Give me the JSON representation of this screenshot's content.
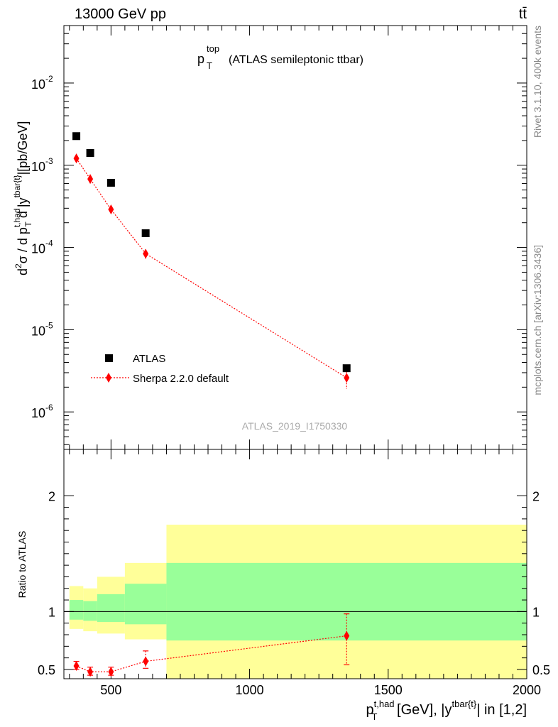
{
  "header": {
    "left": "13000 GeV pp",
    "right": "tt̄"
  },
  "side_labels": {
    "rivet": "Rivet 3.1.10,  400k events",
    "site": "mcplots.cern.ch [arXiv:1306.3436]"
  },
  "main_panel": {
    "title_main": "p",
    "title_sup": "top",
    "title_sub": "T",
    "title_rest": "(ATLAS semileptonic ttbar)",
    "analysis_id": "ATLAS_2019_I1750330",
    "ylabel": "d²σ / d p_T^{t,had} d |y^{tbar{t}}|[pb/GeV]",
    "ytick_labels": [
      "10",
      "10",
      "10",
      "10",
      "10"
    ],
    "ytick_exps": [
      "-2",
      "-3",
      "-4",
      "-5",
      "-6"
    ]
  },
  "ratio_panel": {
    "ylabel": "Ratio to ATLAS",
    "ytick_labels": [
      "2",
      "1",
      "0.5"
    ],
    "xtick_labels": [
      "500",
      "1000",
      "1500",
      "2000"
    ]
  },
  "xlabel": "p_T^{t,had} [GeV], |y^{tbar{t}}| in [1,2]",
  "legend": {
    "data": "ATLAS",
    "mc": "Sherpa 2.2.0 default"
  },
  "colors": {
    "data": "#000000",
    "mc": "#ff0000",
    "band_inner": "#99ff99",
    "band_outer": "#ffff99"
  },
  "chart_data": [
    {
      "type": "scatter",
      "panel": "main",
      "yscale": "log",
      "xlim": [
        330,
        2000
      ],
      "ylim": [
        3.5e-07,
        0.05
      ],
      "series": [
        {
          "name": "ATLAS",
          "x": [
            375,
            425,
            500,
            625,
            1350
          ],
          "y": [
            0.00226,
            0.00141,
            0.000612,
            0.000149,
            3.4e-06
          ]
        },
        {
          "name": "Sherpa 2.2.0 default",
          "x": [
            375,
            425,
            500,
            625,
            1350
          ],
          "y": [
            0.00121,
            0.00068,
            0.00029,
            8.4e-05,
            2.6e-06
          ],
          "yerr_low": [
            1e-07,
            3e-05,
            2e-05,
            1.1e-05,
            7e-07
          ],
          "yerr_high": [
            1e-07,
            3e-05,
            2e-05,
            1.1e-05,
            5e-07
          ]
        }
      ]
    },
    {
      "type": "scatter",
      "panel": "ratio",
      "xlim": [
        330,
        2000
      ],
      "ylim": [
        0.42,
        2.4
      ],
      "bands": [
        {
          "xmin": 350,
          "xmax": 400,
          "inner": [
            0.93,
            1.1
          ],
          "outer": [
            0.85,
            1.22
          ]
        },
        {
          "xmin": 400,
          "xmax": 450,
          "inner": [
            0.92,
            1.09
          ],
          "outer": [
            0.83,
            1.2
          ]
        },
        {
          "xmin": 450,
          "xmax": 550,
          "inner": [
            0.91,
            1.15
          ],
          "outer": [
            0.81,
            1.3
          ]
        },
        {
          "xmin": 550,
          "xmax": 700,
          "inner": [
            0.89,
            1.24
          ],
          "outer": [
            0.76,
            1.42
          ]
        },
        {
          "xmin": 700,
          "xmax": 2000,
          "inner": [
            0.75,
            1.42
          ],
          "outer": [
            0.42,
            1.75
          ]
        }
      ],
      "series": [
        {
          "name": "Sherpa 2.2.0 default",
          "x": [
            375,
            425,
            500,
            625,
            1350
          ],
          "y": [
            0.53,
            0.48,
            0.48,
            0.57,
            0.79
          ],
          "yerr_low": [
            0.03,
            0.03,
            0.03,
            0.06,
            0.25
          ],
          "yerr_high": [
            0.04,
            0.04,
            0.04,
            0.09,
            0.19
          ]
        }
      ]
    }
  ]
}
